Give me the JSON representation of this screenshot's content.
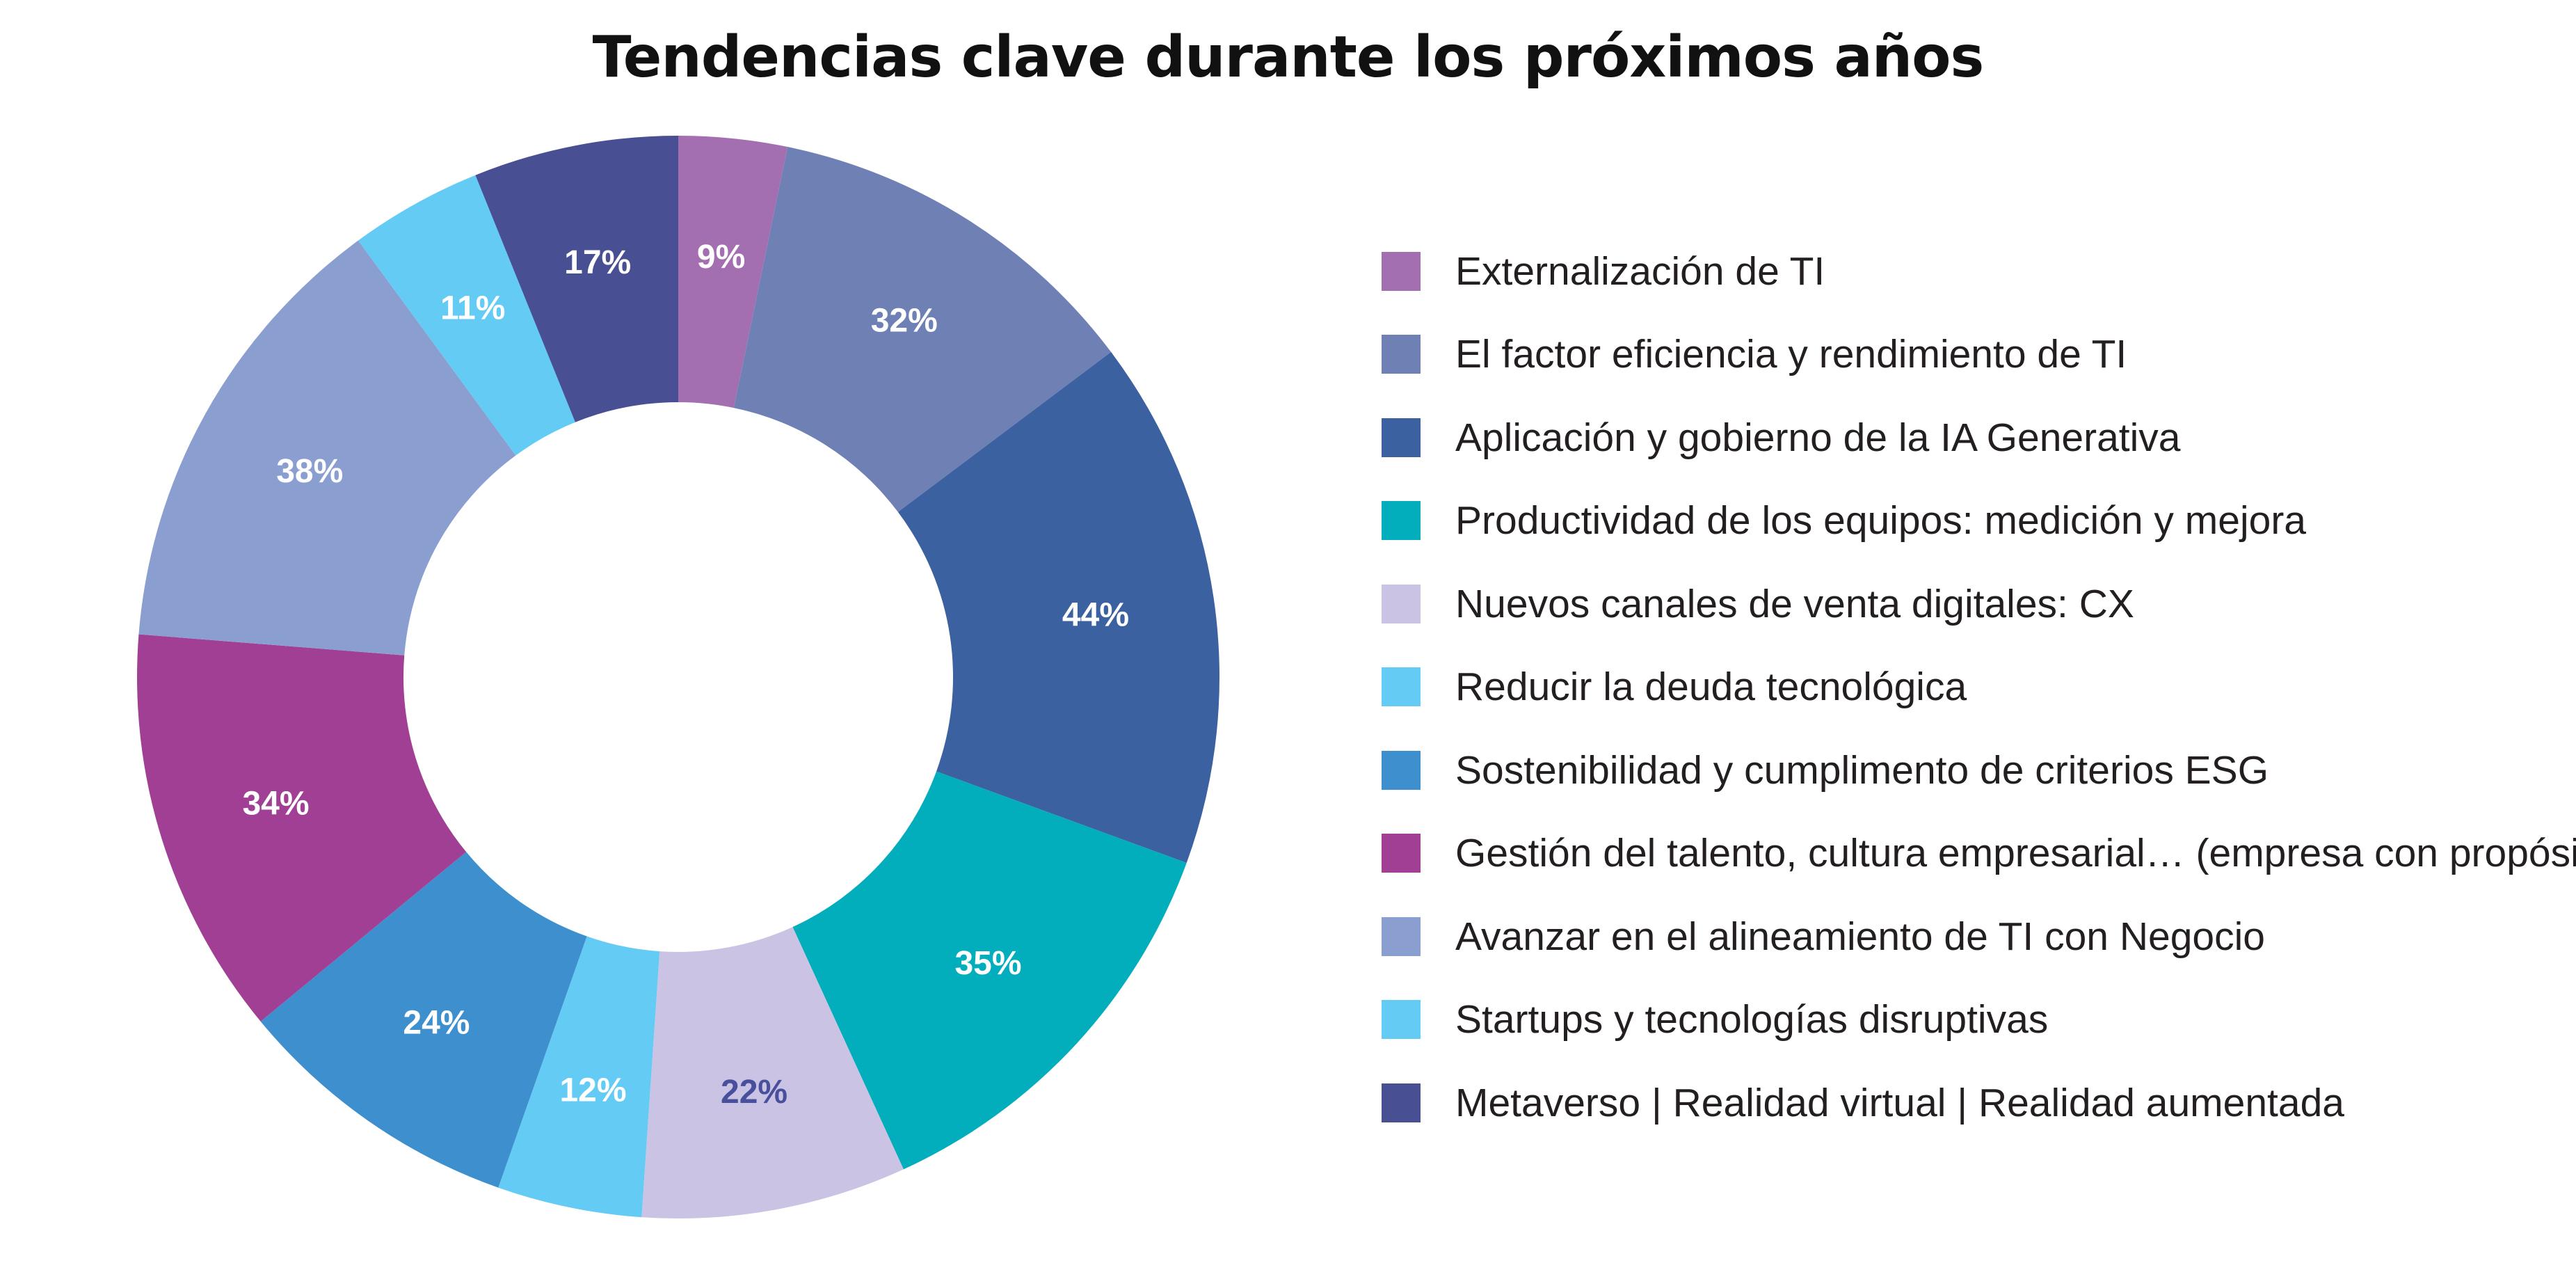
{
  "chart_data": {
    "type": "pie",
    "title": "Tendencias clave durante los próximos años",
    "legend_position": "right",
    "slices": [
      {
        "label": "Externalización de TI",
        "value": 9,
        "value_label": "9%",
        "color": "#a46fb0",
        "label_color": "#ffffff"
      },
      {
        "label": "El factor eficiencia y rendimiento de TI",
        "value": 32,
        "value_label": "32%",
        "color": "#6f80b5",
        "label_color": "#ffffff"
      },
      {
        "label": "Aplicación y gobierno de la IA Generativa",
        "value": 44,
        "value_label": "44%",
        "color": "#3b61a0",
        "label_color": "#ffffff"
      },
      {
        "label": "Productividad de los equipos: medición y mejora",
        "value": 35,
        "value_label": "35%",
        "color": "#02aebc",
        "label_color": "#ffffff"
      },
      {
        "label": "Nuevos canales de venta digitales: CX",
        "value": 22,
        "value_label": "22%",
        "color": "#cbc3e3",
        "label_color": "#484f9c"
      },
      {
        "label": "Reducir la deuda tecnológica",
        "value": 12,
        "value_label": "12%",
        "color": "#64cbf4",
        "label_color": "#ffffff"
      },
      {
        "label": "Sostenibilidad y cumplimento de criterios ESG",
        "value": 24,
        "value_label": "24%",
        "color": "#3e8fcd",
        "label_color": "#ffffff"
      },
      {
        "label": "Gestión del talento, cultura empresarial… (empresa con propósito)",
        "value": 34,
        "value_label": "34%",
        "color": "#a13f95",
        "label_color": "#ffffff"
      },
      {
        "label": "Avanzar en el alineamiento de TI con Negocio",
        "value": 38,
        "value_label": "38%",
        "color": "#8a9ed0",
        "label_color": "#ffffff"
      },
      {
        "label": "Startups y tecnologías disruptivas",
        "value": 11,
        "value_label": "11%",
        "color": "#64cbf4",
        "label_color": "#ffffff"
      },
      {
        "label": "Metaverso | Realidad virtual | Realidad aumentada",
        "value": 17,
        "value_label": "17%",
        "color": "#484f93",
        "label_color": "#ffffff"
      }
    ]
  }
}
